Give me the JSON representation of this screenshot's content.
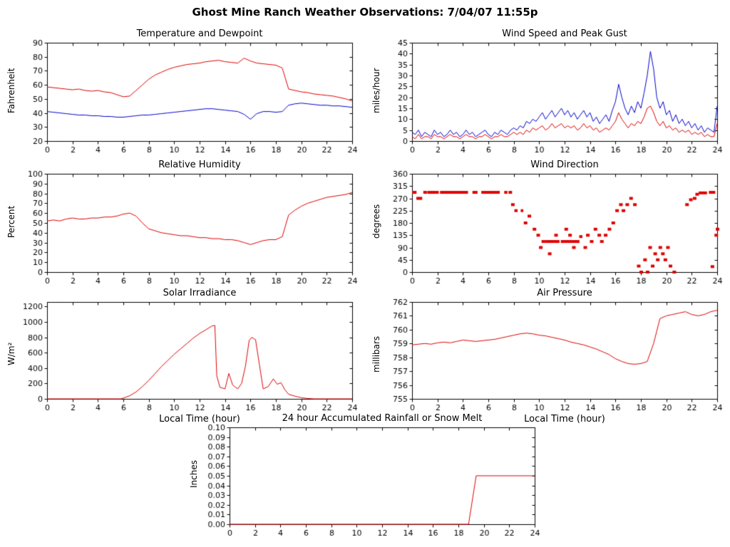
{
  "page": {
    "title": "Ghost Mine Ranch Weather Observations: 7/04/07 11:55p"
  },
  "colors": {
    "red": "#dd0000",
    "blue": "#0000cc",
    "axis": "#000000"
  },
  "chart_data": [
    {
      "type": "line",
      "title": "Temperature and Dewpoint",
      "ylabel": "Fahrenheit",
      "xlim": [
        0,
        24
      ],
      "xtick_step": 2,
      "ylim": [
        20,
        90
      ],
      "ytick_step": 10,
      "series": [
        {
          "name": "Temperature",
          "color": "#dd0000",
          "y": [
            58.5,
            58,
            57.5,
            57,
            56.5,
            57,
            56,
            55.5,
            56,
            55,
            54.5,
            53,
            51.5,
            52,
            56,
            60,
            64,
            67,
            69,
            71,
            72.5,
            73.5,
            74.5,
            75,
            75.5,
            76.5,
            77,
            77.5,
            76.5,
            76,
            75.5,
            79,
            77,
            75.5,
            75,
            74.5,
            74,
            72,
            57,
            56,
            55,
            54.5,
            53.5,
            53,
            52.5,
            52,
            51,
            50,
            48.5
          ]
        },
        {
          "name": "Dewpoint",
          "color": "#0000cc",
          "y": [
            41,
            40.5,
            40,
            39.5,
            39,
            38.5,
            38.5,
            38,
            38,
            37.5,
            37.5,
            37,
            37,
            37.5,
            38,
            38.5,
            38.5,
            39,
            39.5,
            40,
            40.5,
            41,
            41.5,
            42,
            42.5,
            43,
            43,
            42.5,
            42,
            41.5,
            41,
            39,
            35.5,
            39.5,
            41,
            41,
            40.5,
            41,
            45.5,
            46.5,
            47,
            46.5,
            46,
            45.5,
            45.5,
            45,
            45,
            44.5,
            44
          ]
        }
      ]
    },
    {
      "type": "line",
      "title": "Wind Speed and Peak Gust",
      "ylabel": "miles/hour",
      "xlim": [
        0,
        24
      ],
      "xtick_step": 2,
      "ylim": [
        0,
        45
      ],
      "ytick_step": 5,
      "series": [
        {
          "name": "Peak Gust",
          "color": "#0000cc",
          "y": [
            4,
            3,
            5,
            2,
            4,
            3,
            2,
            5,
            3,
            4,
            2,
            3,
            5,
            3,
            4,
            2,
            3,
            5,
            3,
            4,
            2,
            3,
            4,
            5,
            3,
            2,
            4,
            3,
            5,
            4,
            3,
            5,
            6,
            5,
            7,
            6,
            9,
            8,
            10,
            9,
            11,
            13,
            10,
            12,
            14,
            11,
            13,
            15,
            12,
            14,
            11,
            13,
            10,
            12,
            14,
            11,
            13,
            9,
            11,
            8,
            10,
            12,
            9,
            14,
            18,
            26,
            20,
            15,
            12,
            16,
            13,
            18,
            15,
            22,
            30,
            41,
            33,
            20,
            15,
            18,
            12,
            14,
            9,
            12,
            8,
            10,
            7,
            9,
            6,
            8,
            5,
            7,
            4,
            6,
            5,
            4,
            16
          ]
        },
        {
          "name": "Wind Speed",
          "color": "#dd0000",
          "y": [
            2,
            1,
            3,
            1,
            2,
            2,
            1,
            3,
            2,
            2,
            1,
            2,
            3,
            2,
            2,
            1,
            2,
            3,
            2,
            2,
            1,
            2,
            2,
            3,
            2,
            1,
            2,
            2,
            3,
            2,
            2,
            3,
            4,
            3,
            4,
            3,
            5,
            4,
            6,
            5,
            6,
            7,
            5,
            6,
            8,
            6,
            7,
            8,
            6,
            7,
            6,
            7,
            5,
            6,
            8,
            6,
            7,
            5,
            6,
            4,
            5,
            6,
            5,
            7,
            9,
            13,
            10,
            8,
            6,
            8,
            7,
            9,
            8,
            11,
            15,
            16,
            13,
            9,
            7,
            9,
            6,
            7,
            5,
            6,
            4,
            5,
            4,
            5,
            3,
            4,
            3,
            4,
            2,
            3,
            2,
            2,
            8
          ]
        }
      ]
    },
    {
      "type": "line",
      "title": "Relative Humidity",
      "ylabel": "Percent",
      "xlim": [
        0,
        24
      ],
      "xtick_step": 2,
      "ylim": [
        0,
        100
      ],
      "ytick_step": 10,
      "series": [
        {
          "name": "Relative Humidity",
          "color": "#dd0000",
          "y": [
            52,
            53,
            52,
            54,
            55,
            54,
            54,
            55,
            55,
            56,
            56,
            57,
            59,
            60,
            57,
            50,
            44,
            42,
            40,
            39,
            38,
            37,
            37,
            36,
            35,
            35,
            34,
            34,
            33,
            33,
            32,
            30,
            28,
            30,
            32,
            33,
            33,
            36,
            58,
            63,
            67,
            70,
            72,
            74,
            76,
            77,
            78,
            79,
            81
          ]
        }
      ]
    },
    {
      "type": "scatter",
      "title": "Wind Direction",
      "ylabel": "degrees",
      "xlim": [
        0,
        24
      ],
      "xtick_step": 2,
      "ylim": [
        0,
        360
      ],
      "ytick_step": 45,
      "series": [
        {
          "name": "Wind Direction",
          "color": "#dd0000",
          "runs": [
            [
              0.0,
              0.35,
              292
            ],
            [
              0.55,
              0.8,
              270
            ],
            [
              1.2,
              2.1,
              292
            ],
            [
              2.2,
              4.4,
              292
            ],
            [
              4.75,
              5.15,
              292
            ],
            [
              5.45,
              6.9,
              292
            ],
            [
              7.25,
              7.5,
              292
            ],
            [
              8.05,
              8.3,
              225
            ],
            [
              8.55,
              8.75,
              225
            ],
            [
              10.45,
              11.6,
              112
            ],
            [
              11.7,
              12.9,
              112
            ],
            [
              13.15,
              13.4,
              130
            ],
            [
              22.55,
              23.2,
              290
            ],
            [
              23.35,
              23.85,
              292
            ]
          ],
          "points": [
            [
              0.45,
              270
            ],
            [
              1.0,
              292
            ],
            [
              7.7,
              292
            ],
            [
              7.9,
              247
            ],
            [
              8.9,
              180
            ],
            [
              9.2,
              205
            ],
            [
              9.6,
              157
            ],
            [
              9.9,
              135
            ],
            [
              10.1,
              90
            ],
            [
              10.3,
              112
            ],
            [
              10.8,
              67
            ],
            [
              11.3,
              135
            ],
            [
              12.1,
              157
            ],
            [
              12.4,
              135
            ],
            [
              12.7,
              90
            ],
            [
              13.0,
              112
            ],
            [
              13.6,
              90
            ],
            [
              13.8,
              135
            ],
            [
              14.1,
              112
            ],
            [
              14.4,
              157
            ],
            [
              14.7,
              135
            ],
            [
              14.9,
              112
            ],
            [
              15.2,
              135
            ],
            [
              15.5,
              157
            ],
            [
              15.8,
              180
            ],
            [
              16.1,
              225
            ],
            [
              16.4,
              247
            ],
            [
              16.6,
              225
            ],
            [
              16.9,
              247
            ],
            [
              17.2,
              270
            ],
            [
              17.5,
              247
            ],
            [
              17.8,
              22
            ],
            [
              18.0,
              0
            ],
            [
              18.3,
              45
            ],
            [
              18.5,
              0
            ],
            [
              18.7,
              90
            ],
            [
              18.9,
              22
            ],
            [
              19.1,
              67
            ],
            [
              19.3,
              45
            ],
            [
              19.5,
              90
            ],
            [
              19.7,
              67
            ],
            [
              19.9,
              45
            ],
            [
              20.1,
              90
            ],
            [
              20.3,
              22
            ],
            [
              20.6,
              0
            ],
            [
              21.6,
              247
            ],
            [
              21.9,
              265
            ],
            [
              22.2,
              270
            ],
            [
              22.4,
              285
            ],
            [
              23.6,
              20
            ],
            [
              23.9,
              135
            ],
            [
              24.0,
              157
            ]
          ]
        }
      ]
    },
    {
      "type": "line",
      "title": "Solar Irradiance",
      "ylabel": "W/m²",
      "xlabel": "Local Time (hour)",
      "xlim": [
        0,
        24
      ],
      "xtick_step": 2,
      "ylim": [
        0,
        1260
      ],
      "ytick_step": 200,
      "ytick_max": 1200,
      "series": [
        {
          "name": "Solar Irradiance",
          "color": "#dd0000",
          "x": [
            0,
            5.8,
            6,
            6.5,
            7,
            7.5,
            8,
            8.5,
            9,
            9.5,
            10,
            10.5,
            11,
            11.5,
            12,
            12.5,
            13,
            13.2,
            13.35,
            13.6,
            14,
            14.3,
            14.6,
            15,
            15.3,
            15.6,
            15.9,
            16.1,
            16.4,
            16.7,
            17,
            17.4,
            17.8,
            18.1,
            18.4,
            18.7,
            19,
            19.5,
            20,
            20.5,
            21,
            24
          ],
          "y": [
            0,
            0,
            10,
            40,
            90,
            160,
            240,
            330,
            420,
            500,
            580,
            650,
            720,
            790,
            850,
            900,
            950,
            955,
            300,
            150,
            130,
            330,
            180,
            130,
            200,
            420,
            760,
            800,
            770,
            450,
            130,
            160,
            260,
            190,
            210,
            120,
            60,
            35,
            15,
            5,
            0,
            0
          ]
        }
      ]
    },
    {
      "type": "line",
      "title": "Air Pressure",
      "ylabel": "millibars",
      "xlabel": "Local Time (hour)",
      "xlim": [
        0,
        24
      ],
      "xtick_step": 2,
      "ylim": [
        755,
        762
      ],
      "ytick_step": 1,
      "series": [
        {
          "name": "Air Pressure",
          "color": "#dd0000",
          "y": [
            758.9,
            758.95,
            759.0,
            758.95,
            759.05,
            759.1,
            759.05,
            759.15,
            759.25,
            759.2,
            759.15,
            759.2,
            759.25,
            759.3,
            759.4,
            759.5,
            759.6,
            759.7,
            759.75,
            759.7,
            759.6,
            759.55,
            759.45,
            759.35,
            759.25,
            759.1,
            759.0,
            758.9,
            758.75,
            758.6,
            758.4,
            758.2,
            757.9,
            757.7,
            757.55,
            757.5,
            757.55,
            757.7,
            759.0,
            760.8,
            761.0,
            761.1,
            761.2,
            761.3,
            761.1,
            761.0,
            761.1,
            761.3,
            761.4
          ]
        }
      ]
    },
    {
      "type": "line",
      "title": "24 hour Accumulated Rainfall or Snow Melt",
      "ylabel": "Inches",
      "xlim": [
        0,
        24
      ],
      "xtick_step": 2,
      "ylim": [
        0,
        0.1
      ],
      "ytick_step": 0.01,
      "ytick_decimals": 2,
      "series": [
        {
          "name": "Accumulated Rainfall",
          "color": "#dd0000",
          "x": [
            0,
            18.8,
            19.4,
            24
          ],
          "y": [
            0,
            0,
            0.05,
            0.05
          ]
        }
      ]
    }
  ]
}
